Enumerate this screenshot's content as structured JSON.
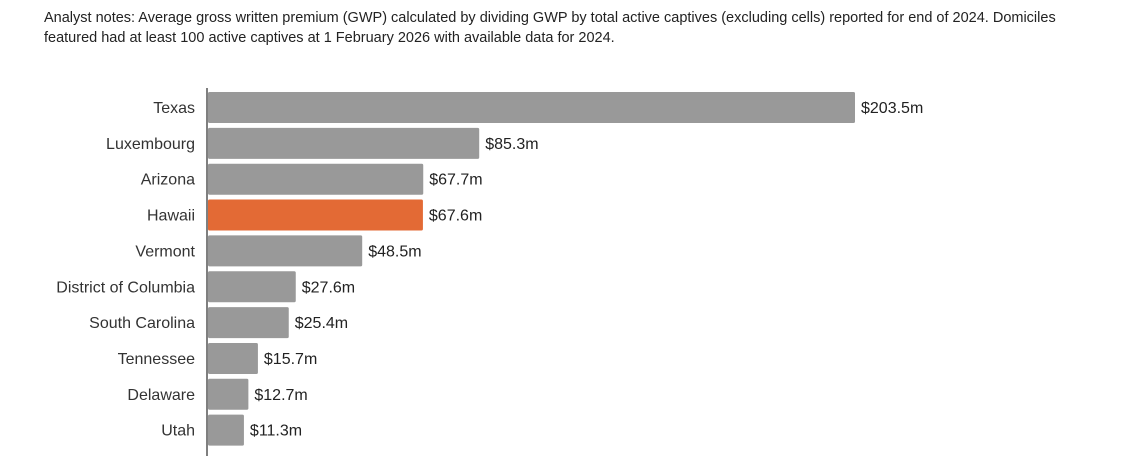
{
  "notes": "Analyst notes: Average gross written premium (GWP) calculated by dividing GWP by total active captives (excluding cells) reported for end of 2024. Domiciles featured had at least 100 active captives at 1 February 2026 with available data for 2024.",
  "colors": {
    "bar": "#999999",
    "highlight": "#e36a35",
    "axis": "#555555"
  },
  "chart_data": {
    "type": "bar",
    "orientation": "horizontal",
    "title": "",
    "xlabel": "",
    "ylabel": "",
    "unit_prefix": "$",
    "unit_suffix": "m",
    "xlim": [
      0,
      210
    ],
    "highlight": "Hawaii",
    "categories": [
      "Texas",
      "Luxembourg",
      "Arizona",
      "Hawaii",
      "Vermont",
      "District of Columbia",
      "South Carolina",
      "Tennessee",
      "Delaware",
      "Utah"
    ],
    "values": [
      203.5,
      85.3,
      67.7,
      67.6,
      48.5,
      27.6,
      25.4,
      15.7,
      12.7,
      11.3
    ],
    "value_labels": [
      "$203.5m",
      "$85.3m",
      "$67.7m",
      "$67.6m",
      "$48.5m",
      "$27.6m",
      "$25.4m",
      "$15.7m",
      "$12.7m",
      "$11.3m"
    ]
  }
}
